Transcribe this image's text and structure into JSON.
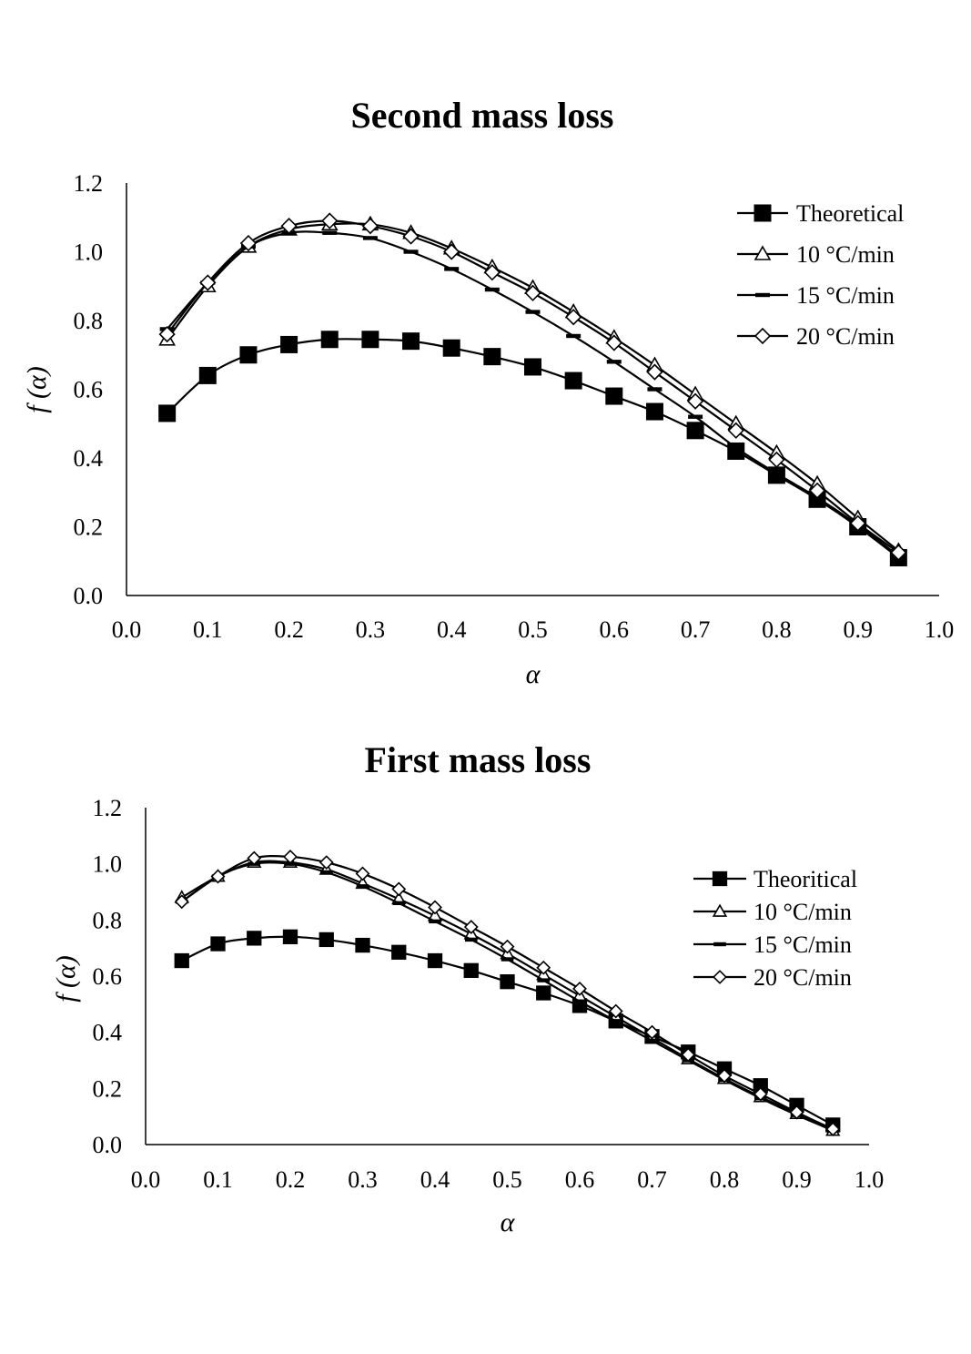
{
  "chart_data": [
    {
      "type": "line",
      "title": "Second mass loss",
      "xlabel": "α",
      "ylabel": "f (α)",
      "xlim": [
        0.0,
        1.0
      ],
      "ylim": [
        0.0,
        1.2
      ],
      "xticks": [
        "0.0",
        "0.1",
        "0.2",
        "0.3",
        "0.4",
        "0.5",
        "0.6",
        "0.7",
        "0.8",
        "0.9",
        "1.0"
      ],
      "yticks": [
        "0.0",
        "0.2",
        "0.4",
        "0.6",
        "0.8",
        "1.0",
        "1.2"
      ],
      "grid": false,
      "legend_position": "top-right",
      "x": [
        0.05,
        0.1,
        0.15,
        0.2,
        0.25,
        0.3,
        0.35,
        0.4,
        0.45,
        0.5,
        0.55,
        0.6,
        0.65,
        0.7,
        0.75,
        0.8,
        0.85,
        0.9,
        0.95
      ],
      "series": [
        {
          "name": "Theoretical",
          "marker": "square",
          "values": [
            0.53,
            0.64,
            0.7,
            0.73,
            0.745,
            0.745,
            0.74,
            0.72,
            0.695,
            0.665,
            0.625,
            0.58,
            0.535,
            0.48,
            0.42,
            0.35,
            0.28,
            0.2,
            0.11
          ]
        },
        {
          "name": "10 °C/min",
          "marker": "triangle",
          "values": [
            0.745,
            0.9,
            1.015,
            1.065,
            1.08,
            1.08,
            1.055,
            1.01,
            0.955,
            0.895,
            0.825,
            0.75,
            0.67,
            0.585,
            0.5,
            0.415,
            0.325,
            0.225,
            0.13
          ]
        },
        {
          "name": "15 °C/min",
          "marker": "dash",
          "values": [
            0.775,
            0.91,
            1.015,
            1.055,
            1.055,
            1.04,
            1.0,
            0.95,
            0.89,
            0.825,
            0.755,
            0.68,
            0.6,
            0.52,
            0.43,
            0.355,
            0.285,
            0.205,
            0.115
          ]
        },
        {
          "name": "20 °C/min",
          "marker": "diamond",
          "values": [
            0.76,
            0.91,
            1.025,
            1.075,
            1.09,
            1.075,
            1.045,
            1.0,
            0.94,
            0.88,
            0.81,
            0.735,
            0.65,
            0.565,
            0.48,
            0.395,
            0.305,
            0.21,
            0.125
          ]
        }
      ]
    },
    {
      "type": "line",
      "title": "First mass loss",
      "xlabel": "α",
      "ylabel": "f (α)",
      "xlim": [
        0.0,
        1.0
      ],
      "ylim": [
        0.0,
        1.2
      ],
      "xticks": [
        "0.0",
        "0.1",
        "0.2",
        "0.3",
        "0.4",
        "0.5",
        "0.6",
        "0.7",
        "0.8",
        "0.9",
        "1.0"
      ],
      "yticks": [
        "0.0",
        "0.2",
        "0.4",
        "0.6",
        "0.8",
        "1.0",
        "1.2"
      ],
      "grid": false,
      "legend_position": "top-right",
      "x": [
        0.05,
        0.1,
        0.15,
        0.2,
        0.25,
        0.3,
        0.35,
        0.4,
        0.45,
        0.5,
        0.55,
        0.6,
        0.65,
        0.7,
        0.75,
        0.8,
        0.85,
        0.9,
        0.95
      ],
      "series": [
        {
          "name": "Theoritical",
          "marker": "square",
          "values": [
            0.655,
            0.715,
            0.735,
            0.74,
            0.73,
            0.71,
            0.685,
            0.655,
            0.62,
            0.58,
            0.54,
            0.495,
            0.44,
            0.385,
            0.33,
            0.27,
            0.21,
            0.14,
            0.07
          ]
        },
        {
          "name": "10 °C/min",
          "marker": "triangle",
          "values": [
            0.88,
            0.955,
            1.005,
            1.005,
            0.98,
            0.93,
            0.875,
            0.815,
            0.75,
            0.68,
            0.605,
            0.53,
            0.455,
            0.38,
            0.305,
            0.235,
            0.17,
            0.11,
            0.05
          ]
        },
        {
          "name": "15 °C/min",
          "marker": "dash",
          "values": [
            0.865,
            0.955,
            1.0,
            1.0,
            0.97,
            0.92,
            0.86,
            0.795,
            0.73,
            0.66,
            0.585,
            0.51,
            0.44,
            0.37,
            0.3,
            0.23,
            0.165,
            0.105,
            0.05
          ]
        },
        {
          "name": "20 °C/min",
          "marker": "diamond",
          "values": [
            0.865,
            0.955,
            1.02,
            1.025,
            1.005,
            0.965,
            0.91,
            0.845,
            0.775,
            0.705,
            0.63,
            0.555,
            0.475,
            0.4,
            0.32,
            0.245,
            0.18,
            0.115,
            0.055
          ]
        }
      ]
    }
  ]
}
